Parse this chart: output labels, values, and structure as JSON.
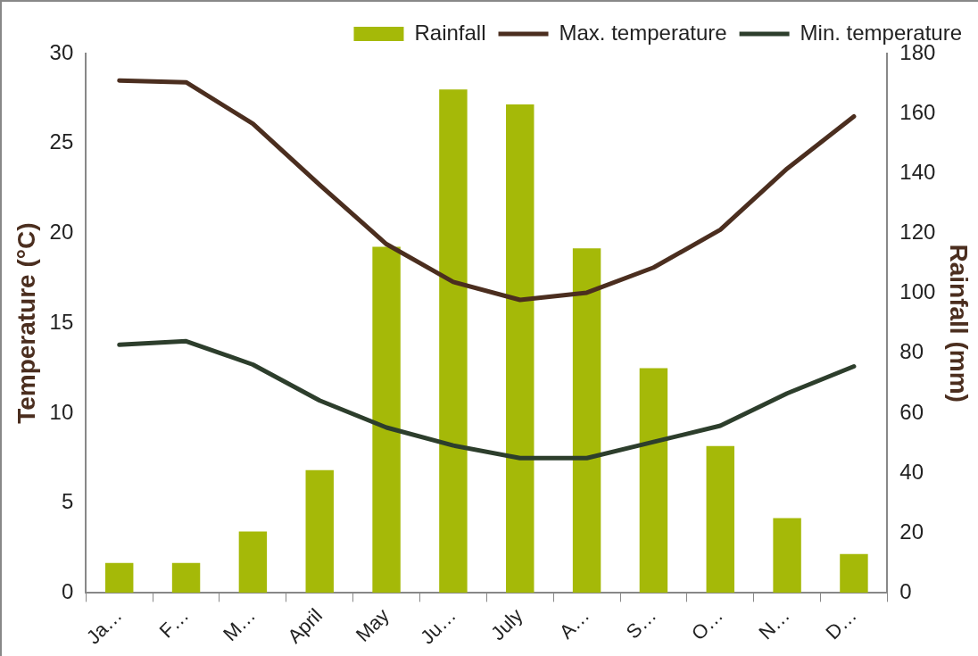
{
  "chart_data": {
    "type": "bar",
    "categories": [
      "Ja…",
      "F…",
      "M…",
      "April",
      "May",
      "Ju…",
      "July",
      "A…",
      "S…",
      "O…",
      "N…",
      "D…"
    ],
    "series": [
      {
        "name": "Rainfall",
        "axis": "y2",
        "color": "#a5b908",
        "values": [
          10,
          10,
          20.5,
          41,
          115.5,
          168,
          163,
          115,
          75,
          49,
          25,
          13
        ]
      },
      {
        "name": "Max. temperature",
        "type": "line",
        "color": "#4b2e1f",
        "values": [
          28.5,
          28.4,
          26.1,
          22.7,
          19.4,
          17.3,
          16.3,
          16.7,
          18.1,
          20.2,
          23.6,
          26.5
        ]
      },
      {
        "name": "Min. temperature",
        "type": "line",
        "color": "#2d3e2c",
        "values": [
          13.8,
          14.0,
          12.7,
          10.7,
          9.2,
          8.2,
          7.5,
          7.5,
          8.4,
          9.3,
          11.1,
          12.6
        ]
      }
    ],
    "ylabel": "Temperature (°C)",
    "y2label": "Rainfall (mm)",
    "ylim": [
      0,
      30
    ],
    "yticks": [
      0,
      5,
      10,
      15,
      20,
      25,
      30
    ],
    "y2lim": [
      0,
      180
    ],
    "y2ticks": [
      0,
      20,
      40,
      60,
      80,
      100,
      120,
      140,
      160,
      180
    ],
    "legend": "top right",
    "grid": false,
    "marker": "none",
    "line_style": "solid"
  }
}
